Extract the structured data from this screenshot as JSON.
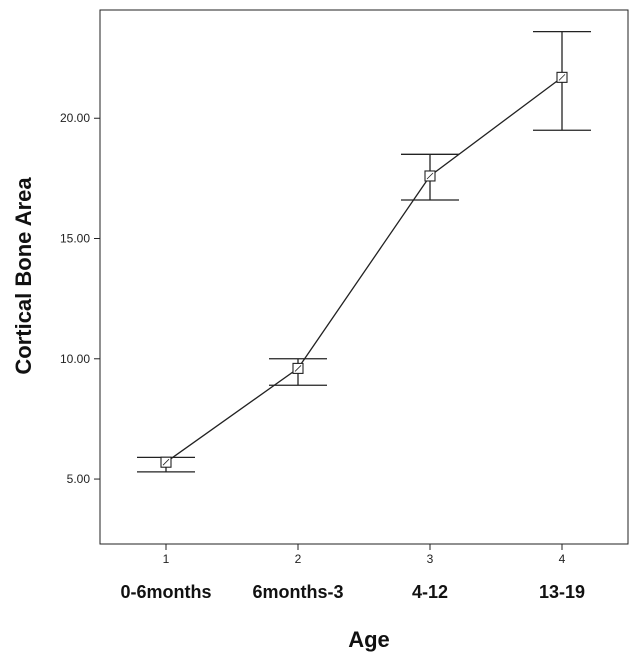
{
  "chart_data": {
    "type": "line",
    "title": "",
    "xlabel": "Age",
    "ylabel": "Cortical Bone Area",
    "x": [
      1,
      2,
      3,
      4
    ],
    "x_tick_labels": [
      "1",
      "2",
      "3",
      "4"
    ],
    "categories": [
      "0-6months",
      "6months-3",
      "4-12",
      "13-19"
    ],
    "y_ticks": [
      5,
      10,
      15,
      20
    ],
    "y_tick_labels": [
      "5.00",
      "10.00",
      "15.00",
      "20.00"
    ],
    "ylim": [
      2.3,
      24.5
    ],
    "xlim": [
      0.5,
      4.5
    ],
    "grid": false,
    "legend": "none",
    "series": [
      {
        "values": [
          5.7,
          9.6,
          17.6,
          21.7
        ],
        "error_low": [
          5.3,
          8.9,
          16.6,
          19.5
        ],
        "error_high": [
          5.9,
          10.0,
          18.5,
          23.6
        ],
        "marker": "square",
        "color": "#222222"
      }
    ]
  }
}
